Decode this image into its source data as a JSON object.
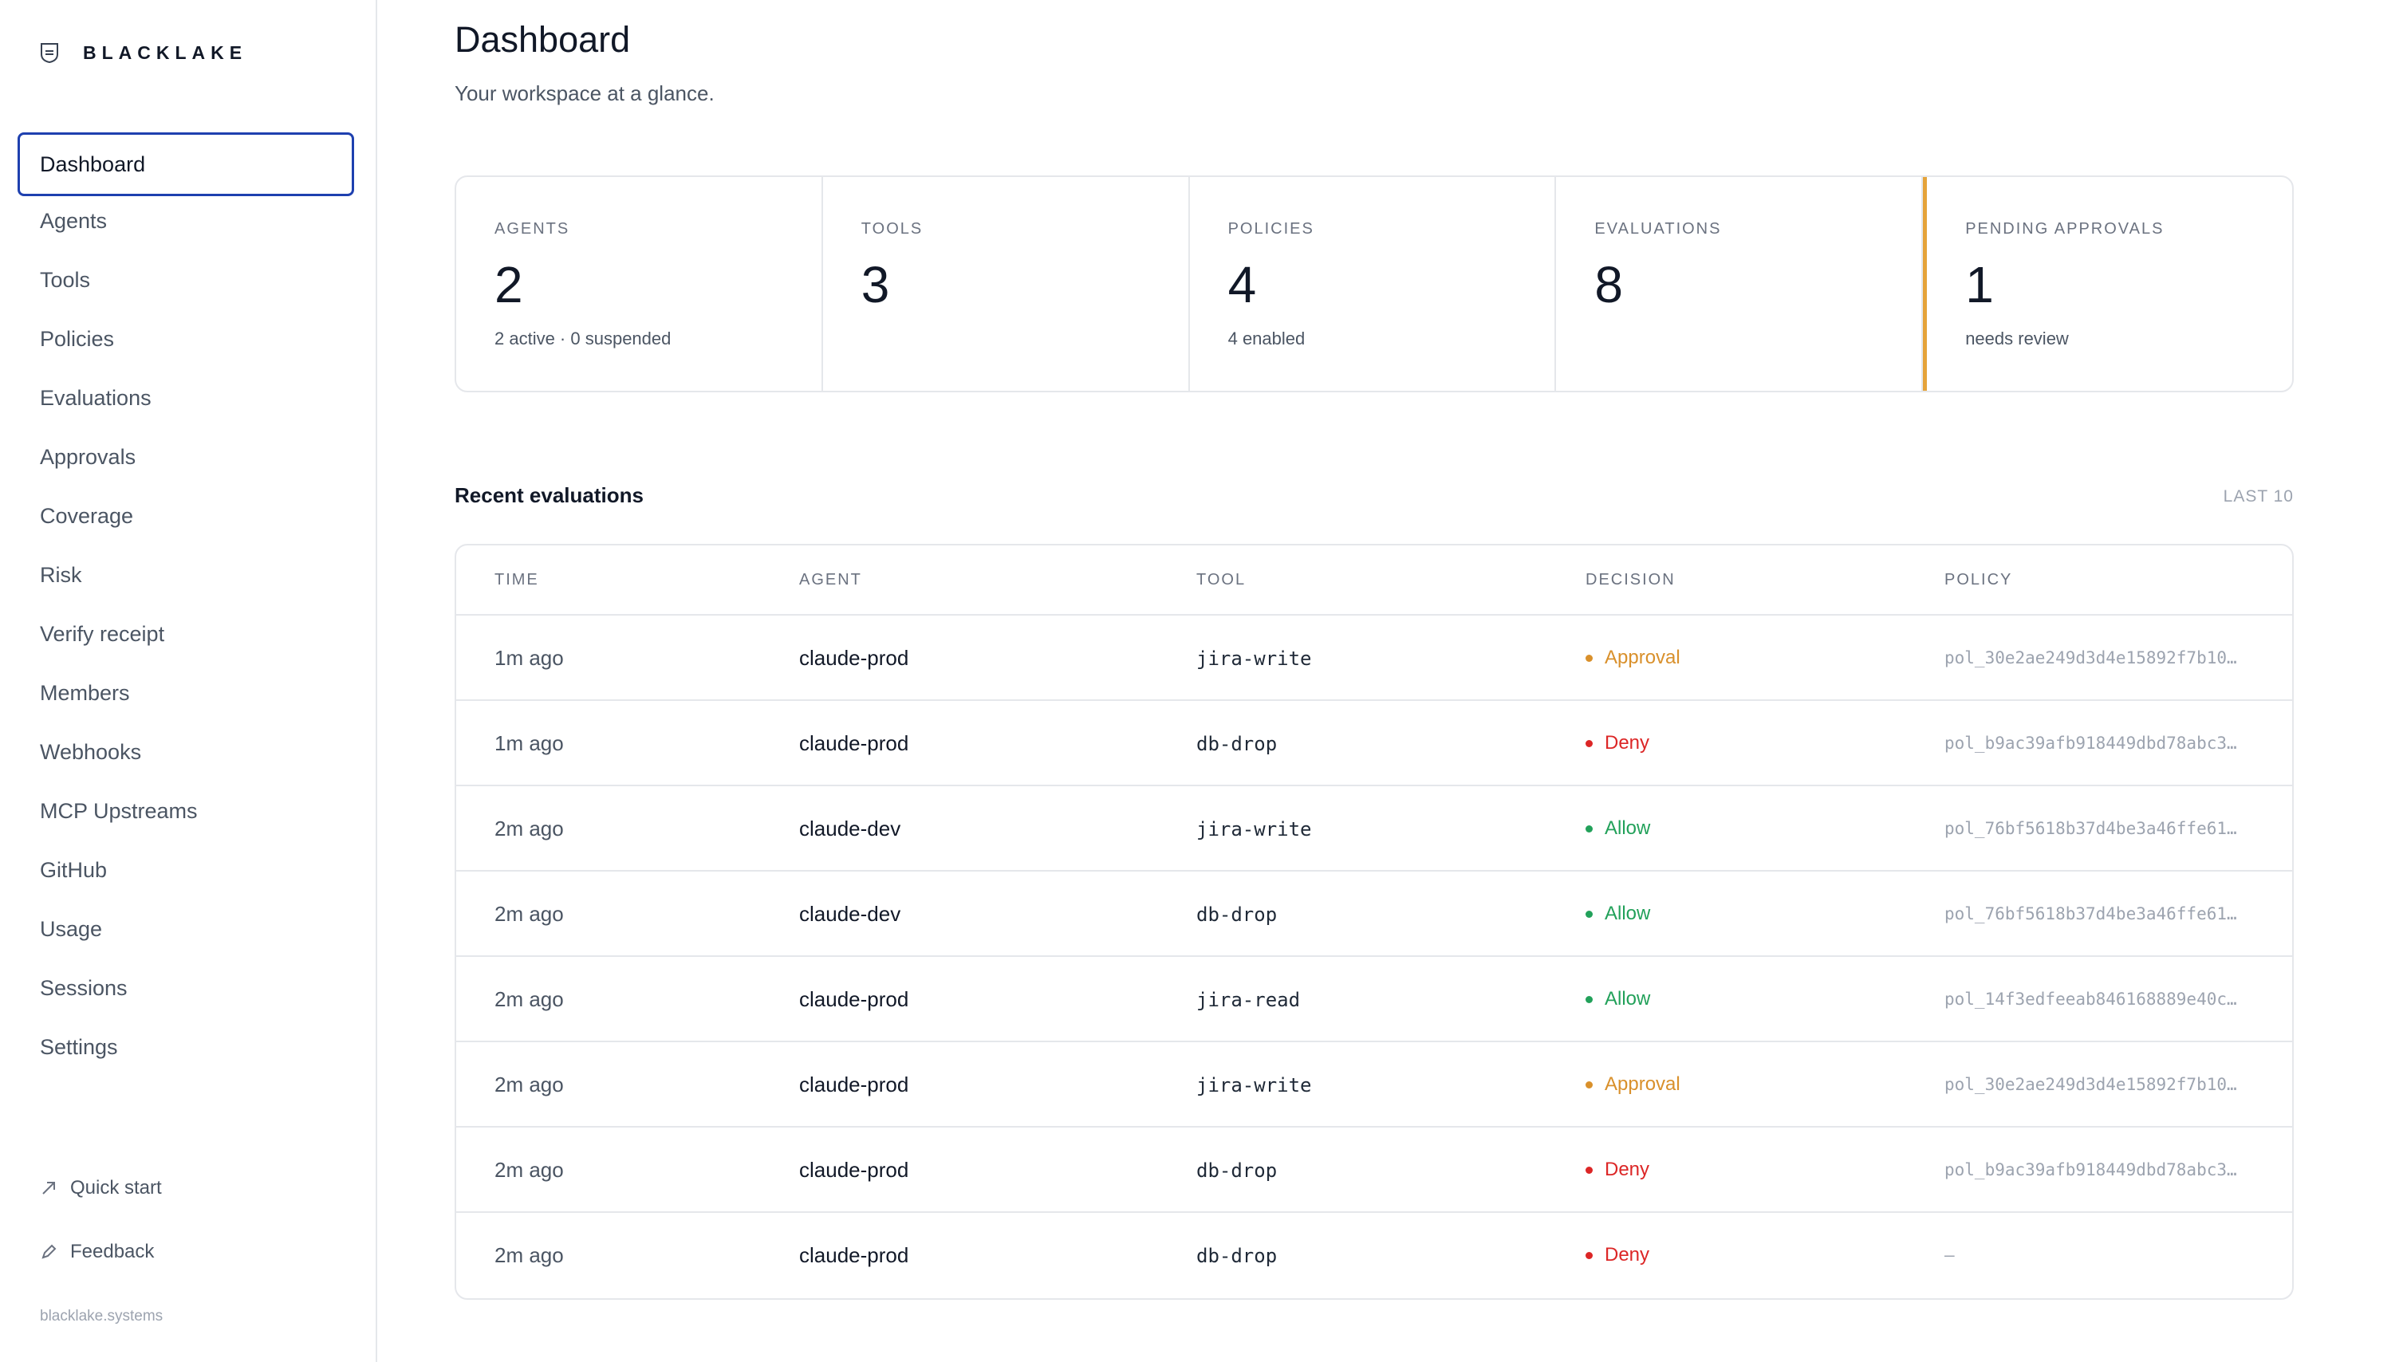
{
  "brand": {
    "name": "BLACKLAKE"
  },
  "sidebar": {
    "items": [
      {
        "label": "Dashboard",
        "active": true
      },
      {
        "label": "Agents"
      },
      {
        "label": "Tools"
      },
      {
        "label": "Policies"
      },
      {
        "label": "Evaluations"
      },
      {
        "label": "Approvals"
      },
      {
        "label": "Coverage"
      },
      {
        "label": "Risk"
      },
      {
        "label": "Verify receipt"
      },
      {
        "label": "Members"
      },
      {
        "label": "Webhooks"
      },
      {
        "label": "MCP Upstreams"
      },
      {
        "label": "GitHub"
      },
      {
        "label": "Usage"
      },
      {
        "label": "Sessions"
      },
      {
        "label": "Settings"
      }
    ],
    "footer": {
      "quick_start": "Quick start",
      "feedback": "Feedback",
      "domain": "blacklake.systems"
    }
  },
  "header": {
    "title": "Dashboard",
    "subtitle": "Your workspace at a glance."
  },
  "stats": [
    {
      "label": "AGENTS",
      "value": "2",
      "sub": "2 active · 0 suspended"
    },
    {
      "label": "TOOLS",
      "value": "3",
      "sub": ""
    },
    {
      "label": "POLICIES",
      "value": "4",
      "sub": "4 enabled"
    },
    {
      "label": "EVALUATIONS",
      "value": "8",
      "sub": ""
    },
    {
      "label": "PENDING APPROVALS",
      "value": "1",
      "sub": "needs review",
      "accent": "#e5a33a"
    }
  ],
  "evaluations": {
    "title": "Recent evaluations",
    "meta": "LAST 10",
    "columns": [
      "TIME",
      "AGENT",
      "TOOL",
      "DECISION",
      "POLICY"
    ],
    "rows": [
      {
        "time": "1m ago",
        "agent": "claude-prod",
        "tool": "jira-write",
        "decision": "Approval",
        "policy": "pol_30e2ae249d3d4e15892f7b10…"
      },
      {
        "time": "1m ago",
        "agent": "claude-prod",
        "tool": "db-drop",
        "decision": "Deny",
        "policy": "pol_b9ac39afb918449dbd78abc3…"
      },
      {
        "time": "2m ago",
        "agent": "claude-dev",
        "tool": "jira-write",
        "decision": "Allow",
        "policy": "pol_76bf5618b37d4be3a46ffe61…"
      },
      {
        "time": "2m ago",
        "agent": "claude-dev",
        "tool": "db-drop",
        "decision": "Allow",
        "policy": "pol_76bf5618b37d4be3a46ffe61…"
      },
      {
        "time": "2m ago",
        "agent": "claude-prod",
        "tool": "jira-read",
        "decision": "Allow",
        "policy": "pol_14f3edfeeab846168889e40c…"
      },
      {
        "time": "2m ago",
        "agent": "claude-prod",
        "tool": "jira-write",
        "decision": "Approval",
        "policy": "pol_30e2ae249d3d4e15892f7b10…"
      },
      {
        "time": "2m ago",
        "agent": "claude-prod",
        "tool": "db-drop",
        "decision": "Deny",
        "policy": "pol_b9ac39afb918449dbd78abc3…"
      },
      {
        "time": "2m ago",
        "agent": "claude-prod",
        "tool": "db-drop",
        "decision": "Deny",
        "policy": "—"
      }
    ]
  },
  "colors": {
    "Approval": "#d9902b",
    "Deny": "#dc2626",
    "Allow": "#22a15a",
    "active_border": "#1e40af"
  }
}
